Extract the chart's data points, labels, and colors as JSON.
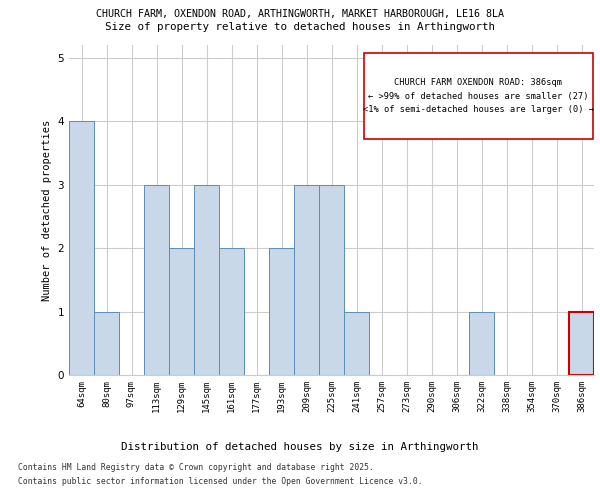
{
  "title_line1": "CHURCH FARM, OXENDON ROAD, ARTHINGWORTH, MARKET HARBOROUGH, LE16 8LA",
  "title_line2": "Size of property relative to detached houses in Arthingworth",
  "xlabel": "Distribution of detached houses by size in Arthingworth",
  "ylabel": "Number of detached properties",
  "categories": [
    "64sqm",
    "80sqm",
    "97sqm",
    "113sqm",
    "129sqm",
    "145sqm",
    "161sqm",
    "177sqm",
    "193sqm",
    "209sqm",
    "225sqm",
    "241sqm",
    "257sqm",
    "273sqm",
    "290sqm",
    "306sqm",
    "322sqm",
    "338sqm",
    "354sqm",
    "370sqm",
    "386sqm"
  ],
  "values": [
    4,
    1,
    0,
    3,
    2,
    3,
    2,
    0,
    2,
    3,
    3,
    1,
    0,
    0,
    0,
    0,
    1,
    0,
    0,
    0,
    1
  ],
  "bar_color": "#c8d8e8",
  "bar_edge_color": "#5b8db8",
  "highlight_index": 20,
  "highlight_bar_edge_color": "#cc0000",
  "annotation_text_line1": "CHURCH FARM OXENDON ROAD: 386sqm",
  "annotation_text_line2": "← >99% of detached houses are smaller (27)",
  "annotation_text_line3": "<1% of semi-detached houses are larger (0) →",
  "ylim": [
    0,
    5.2
  ],
  "yticks": [
    0,
    1,
    2,
    3,
    4,
    5
  ],
  "footer_line1": "Contains HM Land Registry data © Crown copyright and database right 2025.",
  "footer_line2": "Contains public sector information licensed under the Open Government Licence v3.0.",
  "background_color": "#ffffff",
  "grid_color": "#cccccc",
  "title1_fontsize": 7.2,
  "title2_fontsize": 7.8,
  "ylabel_fontsize": 7.5,
  "xlabel_fontsize": 7.8,
  "tick_fontsize": 6.5,
  "ytick_fontsize": 7.5,
  "annotation_fontsize": 6.2,
  "footer_fontsize": 5.8
}
